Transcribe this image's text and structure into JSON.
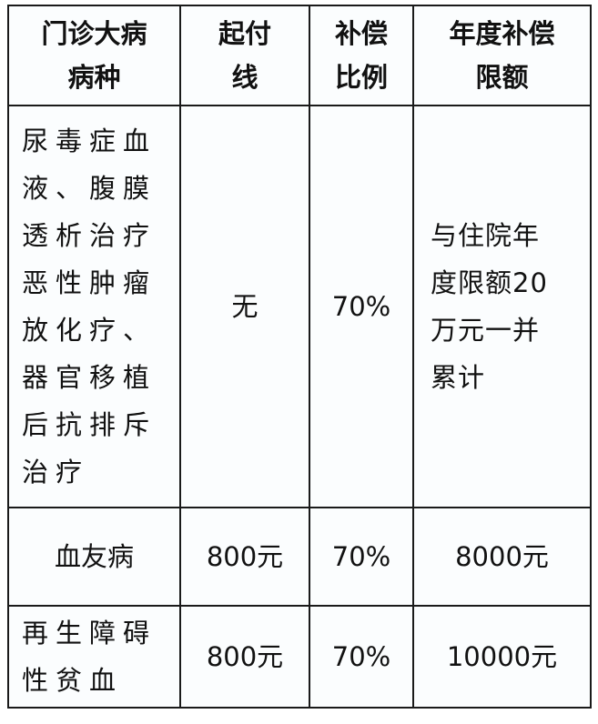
{
  "headers": [
    "门诊大病\n病种",
    "起付\n线",
    "补偿\n比例",
    "年度补偿\n限额"
  ],
  "header_lines": [
    [
      "门诊大病",
      "病种"
    ],
    [
      "起付",
      "线"
    ],
    [
      "补偿",
      "比例"
    ],
    [
      "年度补偿",
      "限额"
    ]
  ],
  "rows": [
    {
      "disease_lines": [
        "尿毒症血",
        "液、腹膜",
        "透析治疗",
        "恶性肿瘤",
        "放化疗、",
        "器官移植",
        "后抗排斥",
        "治疗"
      ],
      "deductible": "无",
      "ratio": "70%",
      "limit_lines": [
        "与住院年",
        "度限额20",
        "万元一并",
        "累计"
      ]
    },
    {
      "disease_lines": [
        "血友病"
      ],
      "deductible": "800元",
      "ratio": "70%",
      "limit_lines": [
        "8000元"
      ]
    },
    {
      "disease_lines": [
        "再生障碍",
        "性贫血"
      ],
      "deductible": "800元",
      "ratio": "70%",
      "limit_lines": [
        "10000元"
      ]
    }
  ]
}
